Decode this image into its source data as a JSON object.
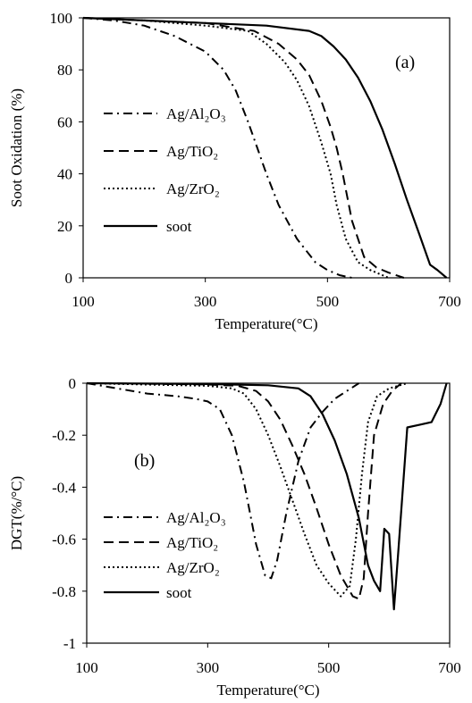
{
  "chart_data": [
    {
      "type": "line",
      "panel_label": "(a)",
      "xlabel": "Temperature(°C)",
      "ylabel": "Soot Oxidation (%)",
      "xlim": [
        100,
        700
      ],
      "ylim": [
        0,
        100
      ],
      "xticks": [
        100,
        300,
        500,
        700
      ],
      "yticks": [
        0,
        20,
        40,
        60,
        80,
        100
      ],
      "grid": false,
      "legend_position": "left",
      "series": [
        {
          "name": "Ag/Al₂O₃",
          "style": "dashdot",
          "x": [
            100,
            150,
            200,
            250,
            300,
            330,
            350,
            370,
            385,
            400,
            420,
            450,
            480,
            500,
            520,
            540
          ],
          "y": [
            100,
            99,
            97,
            93,
            87,
            80,
            72,
            60,
            50,
            40,
            28,
            15,
            6,
            3,
            1,
            0
          ]
        },
        {
          "name": "Ag/TiO₂",
          "style": "dashed",
          "x": [
            100,
            200,
            300,
            380,
            420,
            450,
            470,
            490,
            505,
            515,
            525,
            540,
            560,
            580,
            600,
            625
          ],
          "y": [
            100,
            99,
            98,
            95,
            90,
            84,
            78,
            68,
            58,
            50,
            40,
            22,
            8,
            4,
            2,
            0
          ]
        },
        {
          "name": "Ag/ZrO₂",
          "style": "dotted",
          "x": [
            100,
            200,
            300,
            370,
            400,
            430,
            450,
            470,
            490,
            505,
            515,
            530,
            550,
            570,
            600
          ],
          "y": [
            100,
            99,
            97,
            95,
            90,
            83,
            76,
            66,
            52,
            40,
            28,
            15,
            6,
            3,
            0
          ]
        },
        {
          "name": "soot",
          "style": "solid",
          "x": [
            100,
            200,
            300,
            400,
            470,
            490,
            510,
            530,
            550,
            570,
            590,
            610,
            630,
            650,
            668,
            680,
            695
          ],
          "y": [
            100,
            99,
            98,
            97,
            95,
            93,
            89,
            84,
            77,
            68,
            57,
            44,
            30,
            17,
            5,
            3,
            0
          ]
        }
      ]
    },
    {
      "type": "line",
      "panel_label": "(b)",
      "xlabel": "Temperature(°C)",
      "ylabel": "DGT(%/°C)",
      "xlim": [
        100,
        700
      ],
      "ylim": [
        -1,
        0
      ],
      "xticks": [
        100,
        300,
        500,
        700
      ],
      "yticks": [
        -1,
        -0.8,
        -0.6,
        -0.4,
        -0.2,
        0
      ],
      "grid": false,
      "legend_position": "bottom-left",
      "series": [
        {
          "name": "Ag/Al₂O₃",
          "style": "dashdot",
          "x": [
            100,
            150,
            200,
            250,
            280,
            300,
            320,
            340,
            360,
            380,
            395,
            405,
            415,
            430,
            450,
            470,
            490,
            510,
            530,
            550
          ],
          "y": [
            0,
            -0.02,
            -0.04,
            -0.05,
            -0.06,
            -0.07,
            -0.1,
            -0.2,
            -0.38,
            -0.62,
            -0.74,
            -0.75,
            -0.68,
            -0.5,
            -0.3,
            -0.17,
            -0.11,
            -0.06,
            -0.03,
            0
          ]
        },
        {
          "name": "Ag/TiO₂",
          "style": "dashed",
          "x": [
            100,
            200,
            300,
            350,
            380,
            400,
            420,
            440,
            460,
            480,
            500,
            520,
            540,
            550,
            558,
            565,
            575,
            590,
            605,
            620
          ],
          "y": [
            0,
            -0.002,
            -0.005,
            -0.01,
            -0.03,
            -0.07,
            -0.14,
            -0.24,
            -0.35,
            -0.48,
            -0.62,
            -0.74,
            -0.82,
            -0.83,
            -0.75,
            -0.5,
            -0.2,
            -0.08,
            -0.03,
            0
          ]
        },
        {
          "name": "Ag/ZrO₂",
          "style": "dotted",
          "x": [
            100,
            200,
            300,
            340,
            360,
            380,
            400,
            420,
            440,
            460,
            480,
            500,
            520,
            535,
            545,
            555,
            565,
            580,
            600,
            630
          ],
          "y": [
            0,
            -0.005,
            -0.01,
            -0.02,
            -0.04,
            -0.1,
            -0.2,
            -0.32,
            -0.45,
            -0.58,
            -0.7,
            -0.77,
            -0.82,
            -0.78,
            -0.6,
            -0.35,
            -0.15,
            -0.05,
            -0.02,
            0
          ]
        },
        {
          "name": "soot",
          "style": "solid",
          "x": [
            100,
            300,
            400,
            450,
            470,
            490,
            510,
            530,
            550,
            565,
            575,
            585,
            592,
            600,
            608,
            615,
            630,
            650,
            670,
            685,
            695
          ],
          "y": [
            0,
            -0.003,
            -0.008,
            -0.02,
            -0.05,
            -0.12,
            -0.22,
            -0.35,
            -0.52,
            -0.7,
            -0.76,
            -0.8,
            -0.56,
            -0.58,
            -0.87,
            -0.65,
            -0.17,
            -0.16,
            -0.15,
            -0.08,
            0
          ]
        }
      ]
    }
  ]
}
